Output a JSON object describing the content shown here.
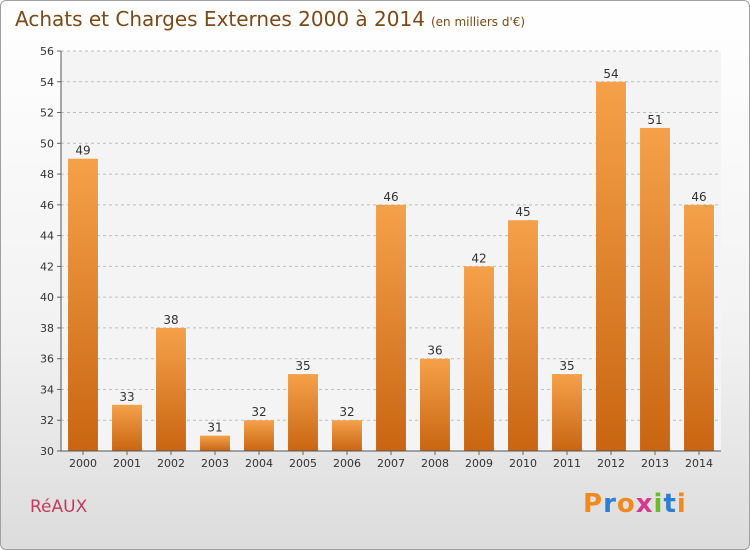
{
  "header": {
    "title": "Achats et Charges Externes 2000 à 2014",
    "unit": "(en milliers d'€)"
  },
  "footer": {
    "place": "RéAUX",
    "brand_letters": [
      "P",
      "r",
      "o",
      "x",
      "i",
      "t",
      "i"
    ],
    "brand_colors": [
      "#f08a1c",
      "#2a7fd4",
      "#f08a1c",
      "#d63a8c",
      "#6dbb2c",
      "#2a7fd4",
      "#f08a1c"
    ]
  },
  "chart_data": {
    "type": "bar",
    "title": "Achats et Charges Externes 2000 à 2014",
    "subtitle": "(en milliers d'€)",
    "xlabel": "",
    "ylabel": "",
    "categories": [
      "2000",
      "2001",
      "2002",
      "2003",
      "2004",
      "2005",
      "2006",
      "2007",
      "2008",
      "2009",
      "2010",
      "2011",
      "2012",
      "2013",
      "2014"
    ],
    "values": [
      49,
      33,
      38,
      31,
      32,
      35,
      32,
      46,
      36,
      42,
      45,
      35,
      54,
      51,
      46
    ],
    "ylim": [
      30,
      56
    ],
    "yticks": [
      30,
      32,
      34,
      36,
      38,
      40,
      42,
      44,
      46,
      48,
      50,
      52,
      54,
      56
    ],
    "grid": true,
    "bar_color_top": "#f5a14a",
    "bar_color_bottom": "#c96512"
  }
}
